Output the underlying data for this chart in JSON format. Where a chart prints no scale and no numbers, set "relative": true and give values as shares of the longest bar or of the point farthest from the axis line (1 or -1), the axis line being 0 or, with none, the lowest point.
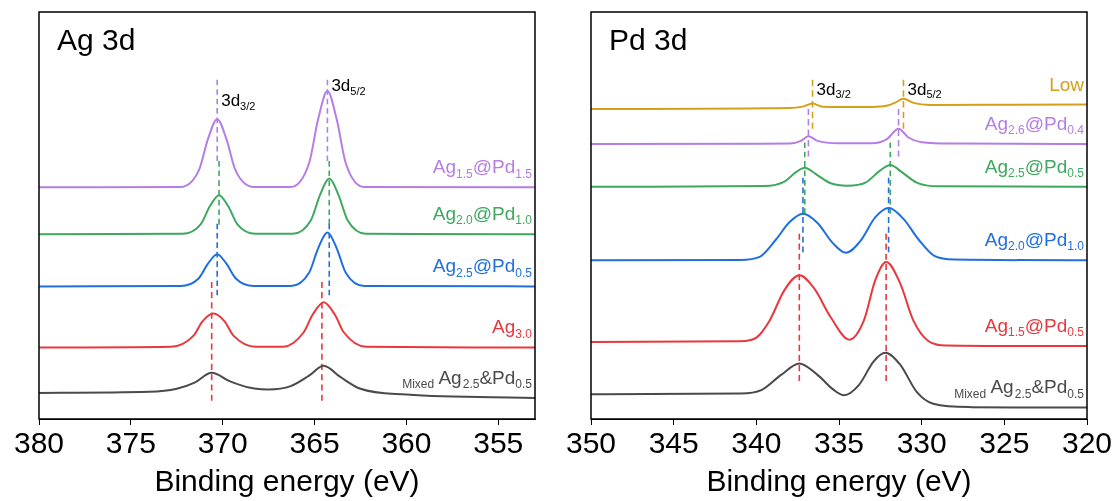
{
  "chart_data": [
    {
      "type": "line",
      "title": "Ag 3d",
      "xlabel": "Binding energy (eV)",
      "relative": true,
      "xlim": [
        380,
        353
      ],
      "xticks": [
        380,
        375,
        370,
        365,
        360,
        355
      ],
      "legend": false,
      "grid": false,
      "annotations": [
        {
          "text": "3d$_{3/2}$",
          "x": 370.3,
          "y": 0.94
        },
        {
          "text": "3d$_{5/2}$",
          "x": 364.3,
          "y": 0.985
        }
      ],
      "series": [
        {
          "name": "Ag$_{1.5}$@Pd$_{1.5}$",
          "color": "#b47ee5",
          "x": [
            380,
            372.3,
            371.3,
            370.8,
            370.3,
            369.8,
            369.3,
            368.3,
            366.3,
            365.3,
            364.8,
            364.3,
            363.8,
            363.3,
            362.3,
            353
          ],
          "values": [
            0.683,
            0.684,
            0.733,
            0.826,
            0.884,
            0.826,
            0.733,
            0.684,
            0.684,
            0.754,
            0.885,
            0.967,
            0.885,
            0.754,
            0.684,
            0.683
          ]
        },
        {
          "name": "Ag$_{2.0}$@Pd$_{1.0}$",
          "color": "#3ea85e",
          "x": [
            380,
            372.2,
            371.2,
            370.7,
            370.2,
            369.7,
            369.2,
            368.2,
            366.2,
            365.2,
            364.7,
            364.2,
            363.7,
            363.2,
            362.2,
            353
          ],
          "values": [
            0.545,
            0.546,
            0.574,
            0.627,
            0.66,
            0.627,
            0.574,
            0.546,
            0.546,
            0.586,
            0.661,
            0.709,
            0.661,
            0.586,
            0.546,
            0.545
          ]
        },
        {
          "name": "Ag$_{2.5}$@Pd$_{0.5}$",
          "color": "#1f6fe0",
          "x": [
            380,
            372.3,
            371.3,
            370.8,
            370.3,
            369.8,
            369.3,
            368.3,
            366.3,
            365.3,
            364.8,
            364.3,
            363.8,
            363.3,
            362.3,
            353
          ],
          "values": [
            0.391,
            0.392,
            0.415,
            0.458,
            0.486,
            0.458,
            0.415,
            0.392,
            0.392,
            0.431,
            0.504,
            0.55,
            0.504,
            0.431,
            0.392,
            0.391
          ]
        },
        {
          "name": "Ag$_{3.0}$",
          "color": "#e8383d",
          "x": [
            380,
            372.8,
            371.6,
            371.1,
            370.5,
            369.9,
            369.4,
            368.2,
            366.7,
            365.6,
            365.1,
            364.5,
            363.9,
            363.4,
            362.2,
            353
          ],
          "values": [
            0.211,
            0.213,
            0.245,
            0.288,
            0.311,
            0.288,
            0.245,
            0.213,
            0.213,
            0.255,
            0.308,
            0.344,
            0.308,
            0.255,
            0.213,
            0.211
          ]
        },
        {
          "name": "$_{Mixed}$ Ag$_{2.5}$&Pd$_{0.5}$",
          "color": "#4a4a4a",
          "x": [
            380,
            374,
            372.5,
            371.5,
            370.6,
            369.6,
            368.5,
            367.5,
            366.3,
            365.3,
            364.5,
            363.6,
            362.5,
            360,
            353
          ],
          "values": [
            0.077,
            0.08,
            0.089,
            0.108,
            0.136,
            0.111,
            0.092,
            0.087,
            0.097,
            0.128,
            0.157,
            0.124,
            0.089,
            0.072,
            0.062
          ]
        },
        {
          "type": "line",
          "line_style": "dashed",
          "color": "#b47ee5",
          "x": [
            370.3,
            370.3
          ],
          "values": [
            1.0,
            0.761
          ]
        },
        {
          "type": "line",
          "line_style": "dashed",
          "color": "#b47ee5",
          "x": [
            364.3,
            364.3
          ],
          "values": [
            1.0,
            0.761
          ]
        },
        {
          "type": "line",
          "line_style": "dashed",
          "color": "#3ea85e",
          "x": [
            370.2,
            370.2
          ],
          "values": [
            0.761,
            0.573
          ]
        },
        {
          "type": "line",
          "line_style": "dashed",
          "color": "#3ea85e",
          "x": [
            364.2,
            364.2
          ],
          "values": [
            0.761,
            0.573
          ]
        },
        {
          "type": "line",
          "line_style": "dashed",
          "color": "#1f6fe0",
          "x": [
            370.3,
            370.3
          ],
          "values": [
            0.576,
            0.365
          ]
        },
        {
          "type": "line",
          "line_style": "dashed",
          "color": "#1f6fe0",
          "x": [
            364.2,
            364.2
          ],
          "values": [
            0.576,
            0.365
          ]
        },
        {
          "type": "line",
          "line_style": "dashed",
          "color": "#e8383d",
          "x": [
            370.6,
            370.6
          ],
          "values": [
            0.404,
            0.054
          ]
        },
        {
          "type": "line",
          "line_style": "dashed",
          "color": "#e8383d",
          "x": [
            364.6,
            364.6
          ],
          "values": [
            0.404,
            0.054
          ]
        }
      ]
    },
    {
      "type": "line",
      "title": "Pd 3d",
      "xlabel": "Binding energy (eV)",
      "relative": true,
      "xlim": [
        350,
        320
      ],
      "xticks": [
        350,
        345,
        340,
        335,
        330,
        325,
        320
      ],
      "legend": false,
      "grid": false,
      "annotations": [
        {
          "text": "3d$_{3/2}$",
          "x": 336.6,
          "y": 0.974
        },
        {
          "text": "3d$_{5/2}$",
          "x": 331.1,
          "y": 0.974
        }
      ],
      "series": [
        {
          "name": "Low",
          "color": "#d4a017",
          "x": [
            350,
            338,
            337.2,
            336.6,
            336,
            333,
            332,
            331.6,
            331.1,
            330.5,
            329.5,
            320
          ],
          "values": [
            0.914,
            0.917,
            0.921,
            0.93,
            0.921,
            0.92,
            0.925,
            0.933,
            0.944,
            0.932,
            0.926,
            0.927
          ]
        },
        {
          "name": "Ag$_{2.6}$@Pd$_{0.4}$",
          "color": "#b47ee5",
          "x": [
            350,
            338,
            337.3,
            336.85,
            336.3,
            335,
            333,
            332.1,
            331.4,
            330.8,
            330,
            328,
            320
          ],
          "values": [
            0.811,
            0.812,
            0.82,
            0.834,
            0.82,
            0.813,
            0.813,
            0.825,
            0.856,
            0.83,
            0.816,
            0.812,
            0.811
          ]
        },
        {
          "name": "Ag$_{2.5}$@Pd$_{0.5}$",
          "color": "#3ea85e",
          "x": [
            350,
            339.5,
            338.3,
            337.6,
            337.07,
            336.4,
            335.5,
            334.5,
            333.4,
            332.5,
            331.9,
            331.2,
            330.3,
            329,
            320
          ],
          "values": [
            0.685,
            0.687,
            0.7,
            0.728,
            0.741,
            0.722,
            0.695,
            0.688,
            0.697,
            0.733,
            0.749,
            0.728,
            0.697,
            0.686,
            0.685
          ]
        },
        {
          "name": "Ag$_{2.0}$@Pd$_{1.0}$",
          "color": "#1f6fe0",
          "x": [
            350,
            341,
            339.8,
            338.8,
            338,
            337.18,
            336.3,
            335.4,
            334.58,
            333.7,
            332.8,
            331.99,
            331.1,
            330.2,
            329.2,
            328,
            320
          ],
          "values": [
            0.468,
            0.469,
            0.478,
            0.53,
            0.58,
            0.605,
            0.578,
            0.52,
            0.49,
            0.525,
            0.595,
            0.622,
            0.59,
            0.53,
            0.48,
            0.47,
            0.468
          ]
        },
        {
          "name": "Ag$_{1.5}$@Pd$_{0.5}$",
          "color": "#e8383d",
          "x": [
            350,
            341,
            340,
            339.2,
            338.3,
            337.39,
            336.5,
            335.5,
            334.37,
            333.5,
            332.8,
            332.14,
            331.3,
            330.5,
            329.6,
            328.5,
            320
          ],
          "values": [
            0.227,
            0.229,
            0.24,
            0.29,
            0.38,
            0.424,
            0.385,
            0.3,
            0.234,
            0.29,
            0.41,
            0.463,
            0.4,
            0.29,
            0.23,
            0.217,
            0.215
          ]
        },
        {
          "name": "$_{Mixed}$ Ag$_{2.5}$&Pd$_{0.5}$",
          "color": "#4a4a4a",
          "x": [
            350,
            341,
            339.7,
            338.5,
            337.4,
            336.3,
            335.3,
            334.7,
            333.8,
            332.9,
            332.2,
            331.3,
            330.3,
            329.3,
            327,
            320
          ],
          "values": [
            0.073,
            0.075,
            0.085,
            0.13,
            0.164,
            0.13,
            0.085,
            0.07,
            0.1,
            0.17,
            0.195,
            0.16,
            0.08,
            0.045,
            0.035,
            0.034
          ]
        },
        {
          "type": "line",
          "line_style": "dashed",
          "color": "#d4a017",
          "x": [
            336.6,
            336.6
          ],
          "values": [
            1.0,
            0.856
          ]
        },
        {
          "type": "line",
          "line_style": "dashed",
          "color": "#d4a017",
          "x": [
            331.1,
            331.1
          ],
          "values": [
            1.0,
            0.856
          ]
        },
        {
          "type": "line",
          "line_style": "dashed",
          "color": "#b47ee5",
          "x": [
            336.85,
            336.85
          ],
          "values": [
            0.914,
            0.774
          ]
        },
        {
          "type": "line",
          "line_style": "dashed",
          "color": "#b47ee5",
          "x": [
            331.4,
            331.4
          ],
          "values": [
            0.914,
            0.774
          ]
        },
        {
          "type": "line",
          "line_style": "dashed",
          "color": "#3ea85e",
          "x": [
            337.07,
            337.07
          ],
          "values": [
            0.815,
            0.605
          ]
        },
        {
          "type": "line",
          "line_style": "dashed",
          "color": "#3ea85e",
          "x": [
            331.9,
            331.9
          ],
          "values": [
            0.815,
            0.605
          ]
        },
        {
          "type": "line",
          "line_style": "dashed",
          "color": "#1f6fe0",
          "x": [
            337.18,
            337.18
          ],
          "values": [
            0.711,
            0.492
          ]
        },
        {
          "type": "line",
          "line_style": "dashed",
          "color": "#1f6fe0",
          "x": [
            332.0,
            332.0
          ],
          "values": [
            0.711,
            0.492
          ]
        },
        {
          "type": "line",
          "line_style": "dashed",
          "color": "#e8383d",
          "x": [
            337.4,
            337.4
          ],
          "values": [
            0.546,
            0.112
          ]
        },
        {
          "type": "line",
          "line_style": "dashed",
          "color": "#e8383d",
          "x": [
            332.15,
            332.15
          ],
          "values": [
            0.546,
            0.112
          ]
        }
      ]
    }
  ]
}
